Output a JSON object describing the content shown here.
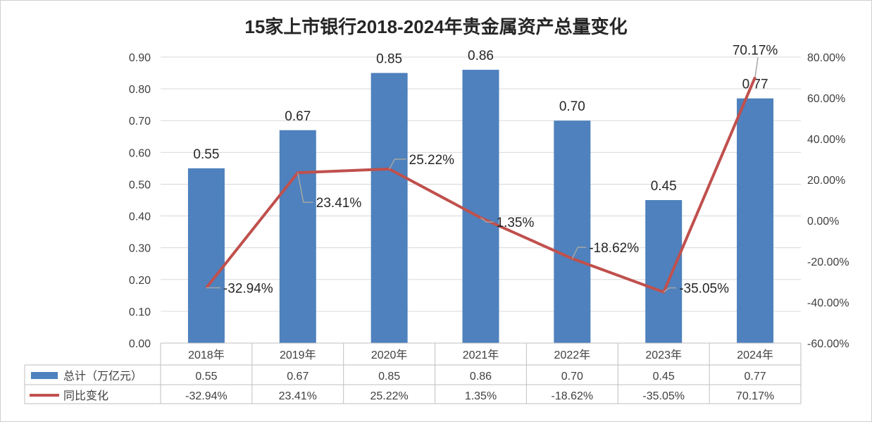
{
  "chart_data": {
    "type": "bar",
    "title": "15家上市银行2018-2024年贵金属资产总量变化",
    "categories": [
      "2018年",
      "2019年",
      "2020年",
      "2021年",
      "2022年",
      "2023年",
      "2024年"
    ],
    "series": [
      {
        "name": "总计（万亿元）",
        "type": "bar",
        "axis": "left",
        "values": [
          0.55,
          0.67,
          0.85,
          0.86,
          0.7,
          0.45,
          0.77
        ],
        "labels": [
          "0.55",
          "0.67",
          "0.85",
          "0.86",
          "0.70",
          "0.45",
          "0.77"
        ],
        "color": "#4e81bd"
      },
      {
        "name": "同比变化",
        "type": "line",
        "axis": "right",
        "values": [
          -32.94,
          23.41,
          25.22,
          1.35,
          -18.62,
          -35.05,
          70.17
        ],
        "labels": [
          "-32.94%",
          "23.41%",
          "25.22%",
          "1.35%",
          "-18.62%",
          "-35.05%",
          "70.17%"
        ],
        "color": "#c0504d"
      }
    ],
    "y_left": {
      "min": 0,
      "max": 0.9,
      "ticks": [
        "0.00",
        "0.10",
        "0.20",
        "0.30",
        "0.40",
        "0.50",
        "0.60",
        "0.70",
        "0.80",
        "0.90"
      ]
    },
    "y_right": {
      "min": -60,
      "max": 80,
      "ticks": [
        "-60.00%",
        "-40.00%",
        "-20.00%",
        "0.00%",
        "20.00%",
        "40.00%",
        "60.00%",
        "80.00%"
      ]
    },
    "grid": true,
    "data_table": true,
    "legend": "in data table"
  }
}
